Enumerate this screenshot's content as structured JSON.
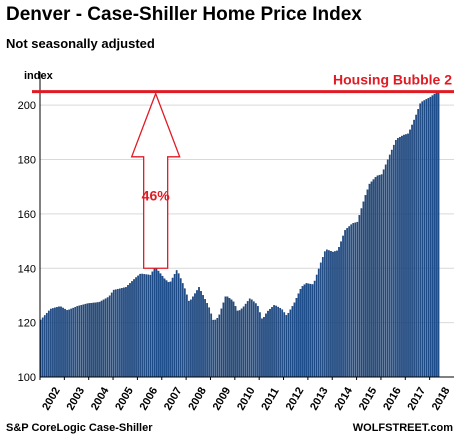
{
  "header": {
    "title": "Denver  - Case-Shiller Home Price Index",
    "subtitle": "Not seasonally adjusted"
  },
  "footer": {
    "source": "S&P CoreLogic Case-Shiller",
    "brand": "WOLFSTREET.com"
  },
  "colors": {
    "bar": "#1f4e8c",
    "bar_edge": "#0d2f5e",
    "accent": "#e01b24",
    "grid": "#d9d9d9"
  },
  "chart_data": {
    "type": "bar",
    "ylabel": "index",
    "ylim": [
      100,
      210
    ],
    "yticks": [
      100,
      120,
      140,
      160,
      180,
      200
    ],
    "grid": true,
    "x_start": 2002,
    "x_tick_labels": [
      "2002",
      "2003",
      "2004",
      "2005",
      "2006",
      "2007",
      "2008",
      "2009",
      "2010",
      "2011",
      "2012",
      "2013",
      "2014",
      "2015",
      "2016",
      "2017",
      "2018"
    ],
    "annotations": {
      "reference_line_label": "Housing Bubble 2",
      "reference_line_value": 205,
      "arrow_label": "46%",
      "arrow_from_value": 140,
      "arrow_to_value": 205
    },
    "anchors": [
      [
        2002.0,
        121.0
      ],
      [
        2002.4,
        125.0
      ],
      [
        2002.8,
        126.0
      ],
      [
        2003.1,
        124.5
      ],
      [
        2003.5,
        126.0
      ],
      [
        2003.9,
        127.0
      ],
      [
        2004.4,
        127.5
      ],
      [
        2004.8,
        129.5
      ],
      [
        2005.0,
        132.0
      ],
      [
        2005.5,
        133.0
      ],
      [
        2005.9,
        136.5
      ],
      [
        2006.1,
        138.0
      ],
      [
        2006.5,
        137.5
      ],
      [
        2006.7,
        140.5
      ],
      [
        2007.1,
        136.0
      ],
      [
        2007.3,
        134.5
      ],
      [
        2007.6,
        139.5
      ],
      [
        2007.9,
        133.0
      ],
      [
        2008.1,
        127.5
      ],
      [
        2008.5,
        133.0
      ],
      [
        2008.9,
        126.0
      ],
      [
        2009.1,
        120.5
      ],
      [
        2009.3,
        122.0
      ],
      [
        2009.6,
        130.0
      ],
      [
        2009.9,
        128.0
      ],
      [
        2010.1,
        124.0
      ],
      [
        2010.3,
        125.5
      ],
      [
        2010.6,
        129.0
      ],
      [
        2010.9,
        126.5
      ],
      [
        2011.1,
        121.0
      ],
      [
        2011.3,
        124.0
      ],
      [
        2011.6,
        126.5
      ],
      [
        2011.9,
        125.0
      ],
      [
        2012.1,
        122.5
      ],
      [
        2012.4,
        127.0
      ],
      [
        2012.7,
        133.0
      ],
      [
        2012.9,
        134.5
      ],
      [
        2013.2,
        134.0
      ],
      [
        2013.5,
        142.0
      ],
      [
        2013.7,
        147.0
      ],
      [
        2014.0,
        146.0
      ],
      [
        2014.2,
        146.5
      ],
      [
        2014.5,
        154.0
      ],
      [
        2014.8,
        156.5
      ],
      [
        2015.0,
        157.0
      ],
      [
        2015.3,
        166.0
      ],
      [
        2015.5,
        171.0
      ],
      [
        2015.8,
        174.0
      ],
      [
        2016.0,
        174.5
      ],
      [
        2016.3,
        181.0
      ],
      [
        2016.6,
        187.5
      ],
      [
        2016.9,
        189.0
      ],
      [
        2017.1,
        189.5
      ],
      [
        2017.4,
        196.0
      ],
      [
        2017.6,
        201.0
      ],
      [
        2017.9,
        202.5
      ],
      [
        2018.0,
        203.0
      ],
      [
        2018.3,
        205.0
      ]
    ]
  }
}
